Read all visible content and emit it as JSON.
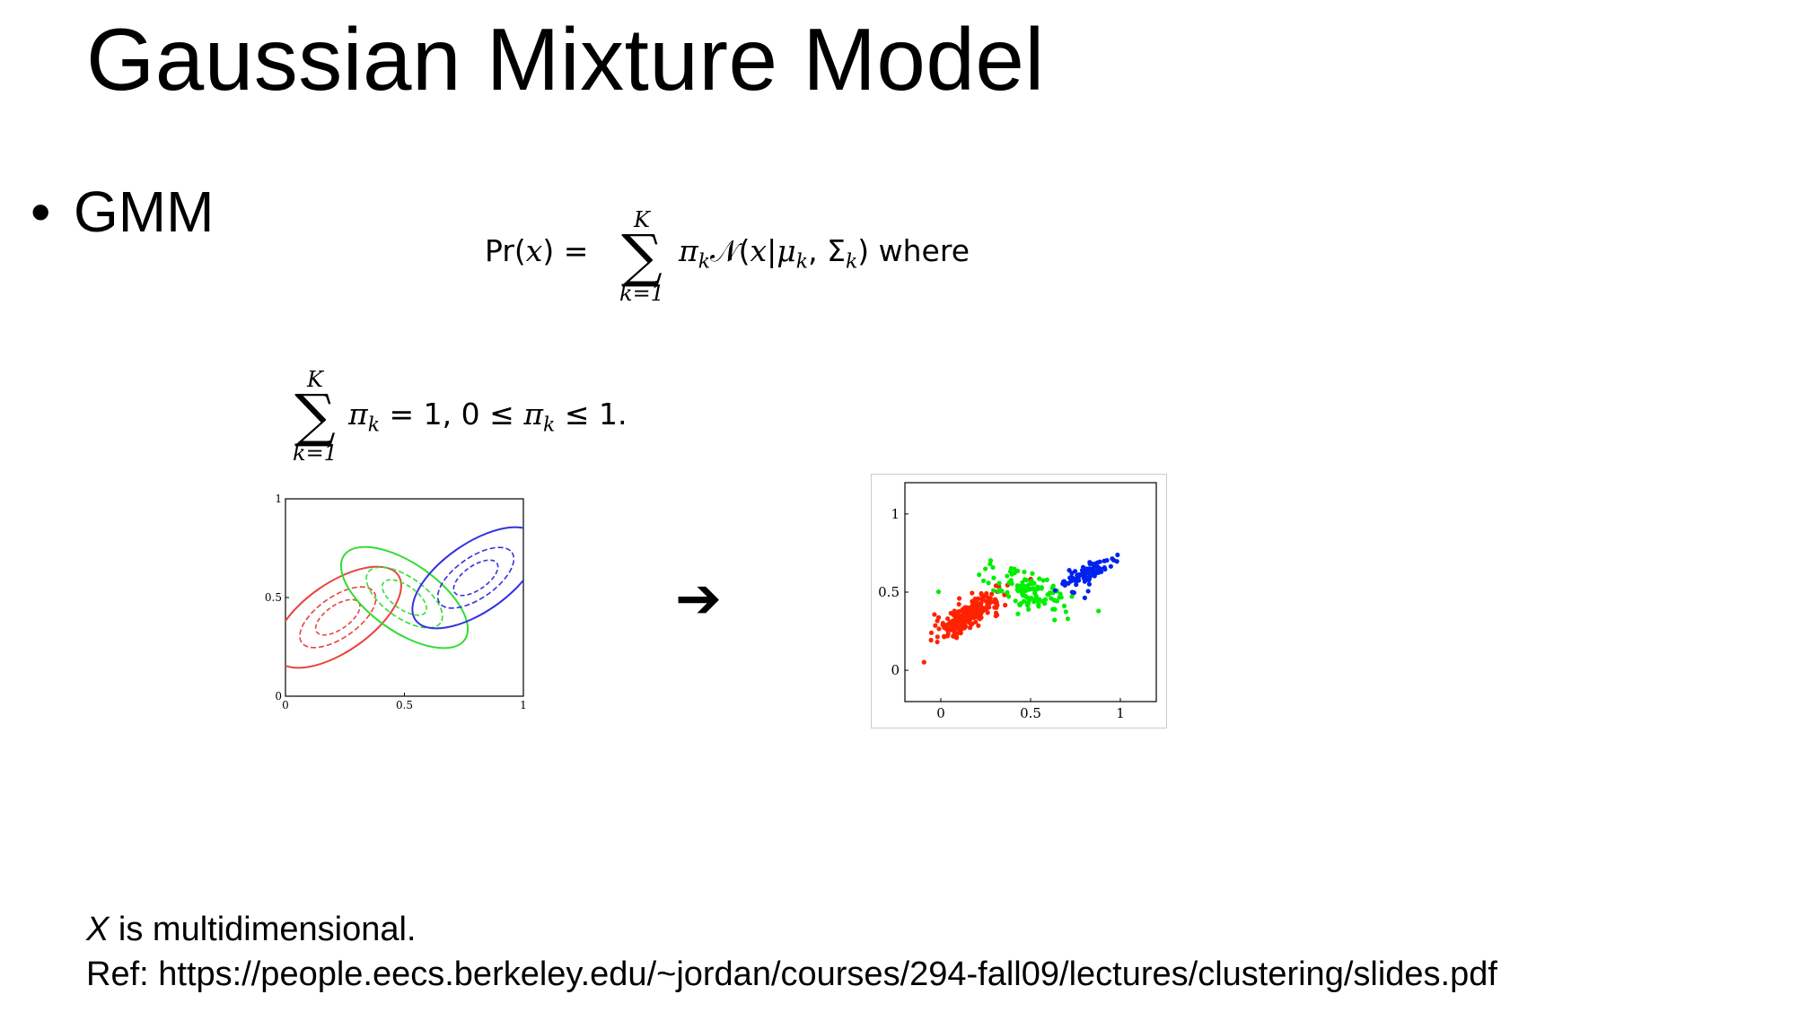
{
  "slide": {
    "title": "Gaussian Mixture Model",
    "bullet_dot": "•",
    "bullet_text": "GMM"
  },
  "formula1": {
    "lhs": "Pr(",
    "x": "x",
    "lhs_end": ") =",
    "sum_upper": "K",
    "sum_lower": "k=1",
    "pi": "π",
    "k": "k",
    "normal": "𝒩(",
    "mu": "μ",
    "sigma": "Σ",
    "where": "where"
  },
  "formula2": {
    "sum_upper": "K",
    "sum_lower": "k=1",
    "pi": "π",
    "k": "k",
    "rhs": "= 1, 0 ≤",
    "le": "≤ 1."
  },
  "arrow": "➔",
  "footer": {
    "note_var": "X",
    "note_text": " is multidimensional.",
    "ref": "Ref: https://people.eecs.berkeley.edu/~jordan/courses/294-fall09/lectures/clustering/slides.pdf"
  },
  "chart_data": [
    {
      "type": "contour",
      "x_ticks": [
        "0",
        "0.5",
        "1"
      ],
      "y_ticks": [
        "0",
        "0.5",
        "1"
      ],
      "xlim": [
        0,
        1
      ],
      "ylim": [
        0,
        1
      ],
      "components": [
        {
          "color": "#e8453c",
          "center": [
            0.22,
            0.4
          ],
          "angle_deg": 35
        },
        {
          "color": "#33dd33",
          "center": [
            0.5,
            0.5
          ],
          "angle_deg": -35
        },
        {
          "color": "#3333dd",
          "center": [
            0.8,
            0.6
          ],
          "angle_deg": 35
        }
      ]
    },
    {
      "type": "scatter",
      "x_ticks": [
        "0",
        "0.5",
        "1"
      ],
      "y_ticks": [
        "0",
        "0.5",
        "1"
      ],
      "xlim": [
        -0.2,
        1.2
      ],
      "ylim": [
        -0.2,
        1.2
      ],
      "series": [
        {
          "color": "#ff2200",
          "center": [
            0.15,
            0.35
          ],
          "count": 260
        },
        {
          "color": "#00ee00",
          "center": [
            0.5,
            0.5
          ],
          "count": 120
        },
        {
          "color": "#0022ee",
          "center": [
            0.82,
            0.62
          ],
          "count": 90
        }
      ]
    }
  ]
}
